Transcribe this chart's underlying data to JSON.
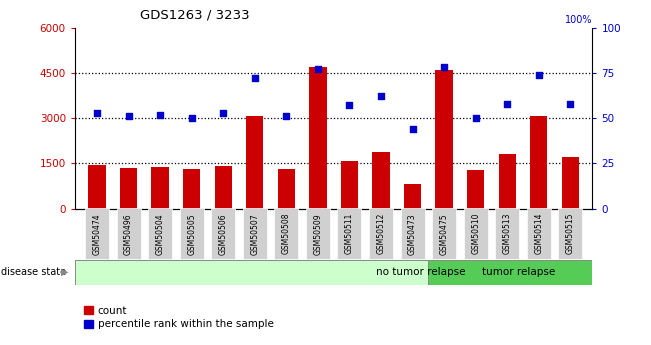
{
  "title": "GDS1263 / 3233",
  "samples": [
    "GSM50474",
    "GSM50496",
    "GSM50504",
    "GSM50505",
    "GSM50506",
    "GSM50507",
    "GSM50508",
    "GSM50509",
    "GSM50511",
    "GSM50512",
    "GSM50473",
    "GSM50475",
    "GSM50510",
    "GSM50513",
    "GSM50514",
    "GSM50515"
  ],
  "counts": [
    1450,
    1350,
    1380,
    1300,
    1420,
    3080,
    1310,
    4700,
    1580,
    1870,
    820,
    4600,
    1270,
    1800,
    3080,
    1700
  ],
  "percentiles": [
    53,
    51,
    52,
    50,
    53,
    72,
    51,
    77,
    57,
    62,
    44,
    78,
    50,
    58,
    74,
    58
  ],
  "no_tumor_count": 11,
  "tumor_count": 5,
  "bar_color": "#cc0000",
  "dot_color": "#0000cc",
  "left_yaxis_color": "#cc0000",
  "right_yaxis_color": "#0000cc",
  "ylim_left": [
    0,
    6000
  ],
  "ylim_right": [
    0,
    100
  ],
  "yticks_left": [
    0,
    1500,
    3000,
    4500,
    6000
  ],
  "yticks_right": [
    0,
    25,
    50,
    75,
    100
  ],
  "no_tumor_label": "no tumor relapse",
  "tumor_label": "tumor relapse",
  "no_tumor_color": "#ccffcc",
  "tumor_color": "#55cc55",
  "disease_state_label": "disease state",
  "legend_count_label": "count",
  "legend_pct_label": "percentile rank within the sample",
  "tick_label_bg": "#d0d0d0",
  "gridline_yticks": [
    1500,
    3000,
    4500
  ]
}
